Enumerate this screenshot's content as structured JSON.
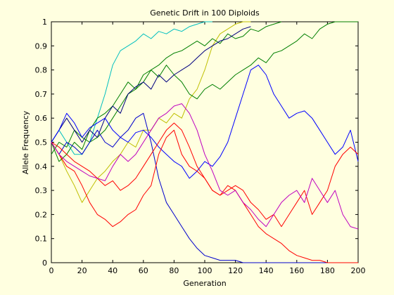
{
  "figure": {
    "background": "#ffffe0"
  },
  "chart_data": {
    "type": "line",
    "title": "Genetic Drift in 100 Diploids",
    "xlabel": "Generation",
    "ylabel": "Allele Frequency",
    "xlim": [
      0,
      200
    ],
    "ylim": [
      0,
      1
    ],
    "grid": false,
    "legend": "none",
    "xticks": [
      0,
      20,
      40,
      60,
      80,
      100,
      120,
      140,
      160,
      180,
      200
    ],
    "yticks": [
      0,
      0.1,
      0.2,
      0.3,
      0.4,
      0.5,
      0.6,
      0.7,
      0.8,
      0.9,
      1
    ],
    "ytick_labels": [
      "0",
      "0.1",
      "0.2",
      "0.3",
      "0.4",
      "0.5",
      "0.6",
      "0.7",
      "0.8",
      "0.9",
      "1"
    ],
    "series": [
      {
        "color": "#00bfbf",
        "x": [
          0,
          5,
          10,
          15,
          20,
          25,
          30,
          35,
          40,
          45,
          50,
          55,
          60,
          65,
          70,
          75,
          80,
          85,
          90,
          95,
          100,
          105
        ],
        "y": [
          0.5,
          0.55,
          0.5,
          0.45,
          0.45,
          0.5,
          0.6,
          0.7,
          0.82,
          0.88,
          0.9,
          0.92,
          0.95,
          0.93,
          0.96,
          0.95,
          0.97,
          0.96,
          0.98,
          0.99,
          1,
          1
        ]
      },
      {
        "color": "#bfbf00",
        "x": [
          0,
          5,
          10,
          15,
          20,
          25,
          30,
          35,
          40,
          45,
          50,
          55,
          60,
          65,
          70,
          75,
          80,
          85,
          90,
          95,
          100,
          105,
          110,
          115,
          120,
          125,
          130
        ],
        "y": [
          0.5,
          0.45,
          0.38,
          0.32,
          0.25,
          0.3,
          0.35,
          0.38,
          0.42,
          0.45,
          0.5,
          0.48,
          0.55,
          0.55,
          0.6,
          0.58,
          0.62,
          0.6,
          0.68,
          0.72,
          0.8,
          0.9,
          0.95,
          0.97,
          0.99,
          1,
          1
        ]
      },
      {
        "color": "#007f00",
        "x": [
          0,
          5,
          10,
          15,
          20,
          25,
          30,
          35,
          40,
          45,
          50,
          55,
          60,
          65,
          70,
          75,
          80,
          85,
          90,
          95,
          100,
          105,
          110,
          115,
          120,
          125,
          130,
          135,
          140,
          145,
          150,
          155,
          160,
          165,
          170,
          175,
          180,
          185,
          190,
          195,
          200
        ],
        "y": [
          0.5,
          0.42,
          0.45,
          0.5,
          0.47,
          0.55,
          0.6,
          0.62,
          0.65,
          0.7,
          0.75,
          0.72,
          0.78,
          0.8,
          0.77,
          0.82,
          0.78,
          0.75,
          0.7,
          0.68,
          0.72,
          0.74,
          0.72,
          0.75,
          0.78,
          0.8,
          0.82,
          0.85,
          0.83,
          0.87,
          0.88,
          0.9,
          0.92,
          0.95,
          0.93,
          0.97,
          0.99,
          1,
          1,
          1,
          1
        ]
      },
      {
        "color": "#007f00",
        "x": [
          0,
          5,
          10,
          15,
          20,
          25,
          30,
          35,
          40,
          45,
          50,
          55,
          60,
          65,
          70,
          75,
          80,
          85,
          90,
          95,
          100,
          105,
          110,
          115,
          120,
          125,
          130,
          135,
          140,
          145,
          150
        ],
        "y": [
          0.45,
          0.5,
          0.48,
          0.55,
          0.52,
          0.5,
          0.52,
          0.55,
          0.6,
          0.65,
          0.7,
          0.72,
          0.75,
          0.8,
          0.82,
          0.85,
          0.87,
          0.88,
          0.9,
          0.92,
          0.9,
          0.93,
          0.91,
          0.95,
          0.93,
          0.94,
          0.97,
          0.96,
          0.98,
          0.99,
          1
        ]
      },
      {
        "color": "#00007f",
        "x": [
          0,
          5,
          10,
          15,
          20,
          25,
          30,
          35,
          40,
          45,
          50,
          55,
          60,
          65,
          70,
          75,
          80,
          85,
          90,
          95,
          100,
          105,
          110,
          115,
          120,
          125,
          130
        ],
        "y": [
          0.5,
          0.55,
          0.6,
          0.55,
          0.5,
          0.55,
          0.52,
          0.6,
          0.65,
          0.62,
          0.7,
          0.73,
          0.75,
          0.72,
          0.78,
          0.75,
          0.78,
          0.8,
          0.82,
          0.85,
          0.88,
          0.9,
          0.92,
          0.93,
          0.95,
          0.97,
          0.98
        ]
      },
      {
        "color": "#0000ff",
        "x": [
          0,
          5,
          10,
          15,
          20,
          25,
          30,
          35,
          40,
          45,
          50,
          55,
          60,
          65,
          70,
          75,
          80,
          85,
          90,
          95,
          100,
          105,
          110,
          115,
          120,
          125,
          130,
          135,
          140,
          145,
          150,
          155,
          160,
          165,
          170,
          175,
          180,
          185,
          190,
          195,
          200
        ],
        "y": [
          0.5,
          0.55,
          0.62,
          0.58,
          0.52,
          0.56,
          0.58,
          0.6,
          0.55,
          0.52,
          0.5,
          0.54,
          0.55,
          0.52,
          0.48,
          0.45,
          0.42,
          0.4,
          0.35,
          0.38,
          0.42,
          0.4,
          0.44,
          0.5,
          0.6,
          0.7,
          0.8,
          0.82,
          0.78,
          0.7,
          0.65,
          0.6,
          0.62,
          0.63,
          0.6,
          0.55,
          0.5,
          0.45,
          0.48,
          0.55,
          0.42
        ]
      },
      {
        "color": "#0000cc",
        "x": [
          0,
          5,
          10,
          15,
          20,
          25,
          30,
          35,
          40,
          45,
          50,
          55,
          60,
          65,
          70,
          75,
          80,
          85,
          90,
          95,
          100,
          105,
          110,
          115,
          120,
          125,
          130,
          140,
          160,
          180,
          200
        ],
        "y": [
          0.5,
          0.45,
          0.5,
          0.48,
          0.45,
          0.5,
          0.55,
          0.5,
          0.48,
          0.52,
          0.55,
          0.6,
          0.62,
          0.5,
          0.35,
          0.25,
          0.2,
          0.15,
          0.1,
          0.06,
          0.03,
          0.02,
          0.01,
          0.01,
          0.01,
          0,
          0,
          0,
          0,
          0,
          0
        ]
      },
      {
        "color": "#ff0000",
        "x": [
          0,
          5,
          10,
          15,
          20,
          25,
          30,
          35,
          40,
          45,
          50,
          55,
          60,
          65,
          70,
          75,
          80,
          85,
          90,
          95,
          100,
          105,
          110,
          115,
          120,
          125,
          130,
          135,
          140,
          145,
          150,
          155,
          160,
          165,
          170,
          175,
          180,
          185,
          190,
          195,
          200
        ],
        "y": [
          0.5,
          0.45,
          0.4,
          0.38,
          0.32,
          0.25,
          0.2,
          0.18,
          0.15,
          0.17,
          0.2,
          0.22,
          0.28,
          0.32,
          0.45,
          0.52,
          0.55,
          0.45,
          0.4,
          0.38,
          0.35,
          0.3,
          0.28,
          0.32,
          0.3,
          0.25,
          0.2,
          0.15,
          0.12,
          0.1,
          0.08,
          0.05,
          0.03,
          0.02,
          0.01,
          0.01,
          0,
          0,
          0,
          0,
          0
        ]
      },
      {
        "color": "#ff0000",
        "x": [
          0,
          5,
          10,
          15,
          20,
          25,
          30,
          35,
          40,
          45,
          50,
          55,
          60,
          65,
          70,
          75,
          80,
          85,
          90,
          95,
          100,
          105,
          110,
          115,
          120,
          125,
          130,
          135,
          140,
          145,
          150,
          155,
          160,
          165,
          170,
          175,
          180,
          185,
          190,
          195,
          200
        ],
        "y": [
          0.5,
          0.48,
          0.45,
          0.42,
          0.4,
          0.38,
          0.35,
          0.32,
          0.34,
          0.3,
          0.32,
          0.35,
          0.4,
          0.45,
          0.5,
          0.55,
          0.58,
          0.55,
          0.48,
          0.4,
          0.35,
          0.3,
          0.28,
          0.3,
          0.32,
          0.3,
          0.25,
          0.22,
          0.18,
          0.2,
          0.15,
          0.2,
          0.25,
          0.3,
          0.2,
          0.25,
          0.3,
          0.4,
          0.45,
          0.48,
          0.45
        ]
      },
      {
        "color": "#bf00bf",
        "x": [
          0,
          5,
          10,
          15,
          20,
          25,
          30,
          35,
          40,
          45,
          50,
          55,
          60,
          65,
          70,
          75,
          80,
          85,
          90,
          95,
          100,
          105,
          110,
          115,
          120,
          125,
          130,
          135,
          140,
          145,
          150,
          155,
          160,
          165,
          170,
          175,
          180,
          185,
          190,
          195,
          200
        ],
        "y": [
          0.5,
          0.45,
          0.42,
          0.4,
          0.38,
          0.36,
          0.35,
          0.34,
          0.4,
          0.45,
          0.42,
          0.45,
          0.5,
          0.55,
          0.6,
          0.62,
          0.65,
          0.66,
          0.62,
          0.55,
          0.45,
          0.38,
          0.3,
          0.28,
          0.3,
          0.25,
          0.22,
          0.18,
          0.15,
          0.2,
          0.25,
          0.28,
          0.3,
          0.25,
          0.35,
          0.3,
          0.25,
          0.3,
          0.2,
          0.15,
          0.14
        ]
      }
    ]
  }
}
